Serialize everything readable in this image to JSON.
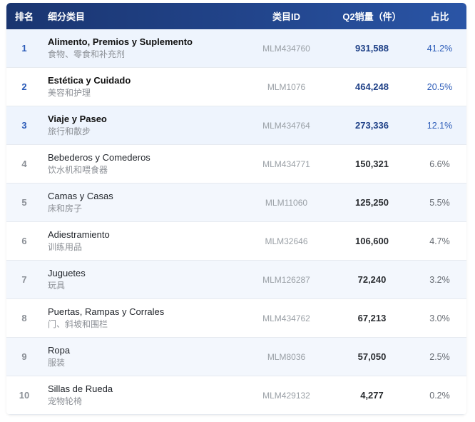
{
  "header": {
    "rank": "排名",
    "category": "细分类目",
    "category_id": "类目ID",
    "sales": "Q2销量（件）",
    "share": "占比"
  },
  "rows": [
    {
      "rank": "1",
      "name_en": "Alimento, Premios y Suplemento",
      "name_zh": "食物、零食和补充剂",
      "id": "MLM434760",
      "sales": "931,588",
      "share": "41.2%"
    },
    {
      "rank": "2",
      "name_en": "Estética y Cuidado",
      "name_zh": "美容和护理",
      "id": "MLM1076",
      "sales": "464,248",
      "share": "20.5%"
    },
    {
      "rank": "3",
      "name_en": "Viaje y Paseo",
      "name_zh": "旅行和散步",
      "id": "MLM434764",
      "sales": "273,336",
      "share": "12.1%"
    },
    {
      "rank": "4",
      "name_en": "Bebederos y Comederos",
      "name_zh": "饮水机和喂食器",
      "id": "MLM434771",
      "sales": "150,321",
      "share": "6.6%"
    },
    {
      "rank": "5",
      "name_en": "Camas y Casas",
      "name_zh": "床和房子",
      "id": "MLM11060",
      "sales": "125,250",
      "share": "5.5%"
    },
    {
      "rank": "6",
      "name_en": "Adiestramiento",
      "name_zh": "训练用品",
      "id": "MLM32646",
      "sales": "106,600",
      "share": "4.7%"
    },
    {
      "rank": "7",
      "name_en": "Juguetes",
      "name_zh": "玩具",
      "id": "MLM126287",
      "sales": "72,240",
      "share": "3.2%"
    },
    {
      "rank": "8",
      "name_en": "Puertas, Rampas y Corrales",
      "name_zh": "门、斜坡和围栏",
      "id": "MLM434762",
      "sales": "67,213",
      "share": "3.0%"
    },
    {
      "rank": "9",
      "name_en": "Ropa",
      "name_zh": "服装",
      "id": "MLM8036",
      "sales": "57,050",
      "share": "2.5%"
    },
    {
      "rank": "10",
      "name_en": "Sillas de Rueda",
      "name_zh": "宠物轮椅",
      "id": "MLM429132",
      "sales": "4,277",
      "share": "0.2%"
    }
  ],
  "colors": {
    "header_bg": "#22458c",
    "accent_blue": "#2b5bb8",
    "top_row_bg": "#eef4fd"
  }
}
